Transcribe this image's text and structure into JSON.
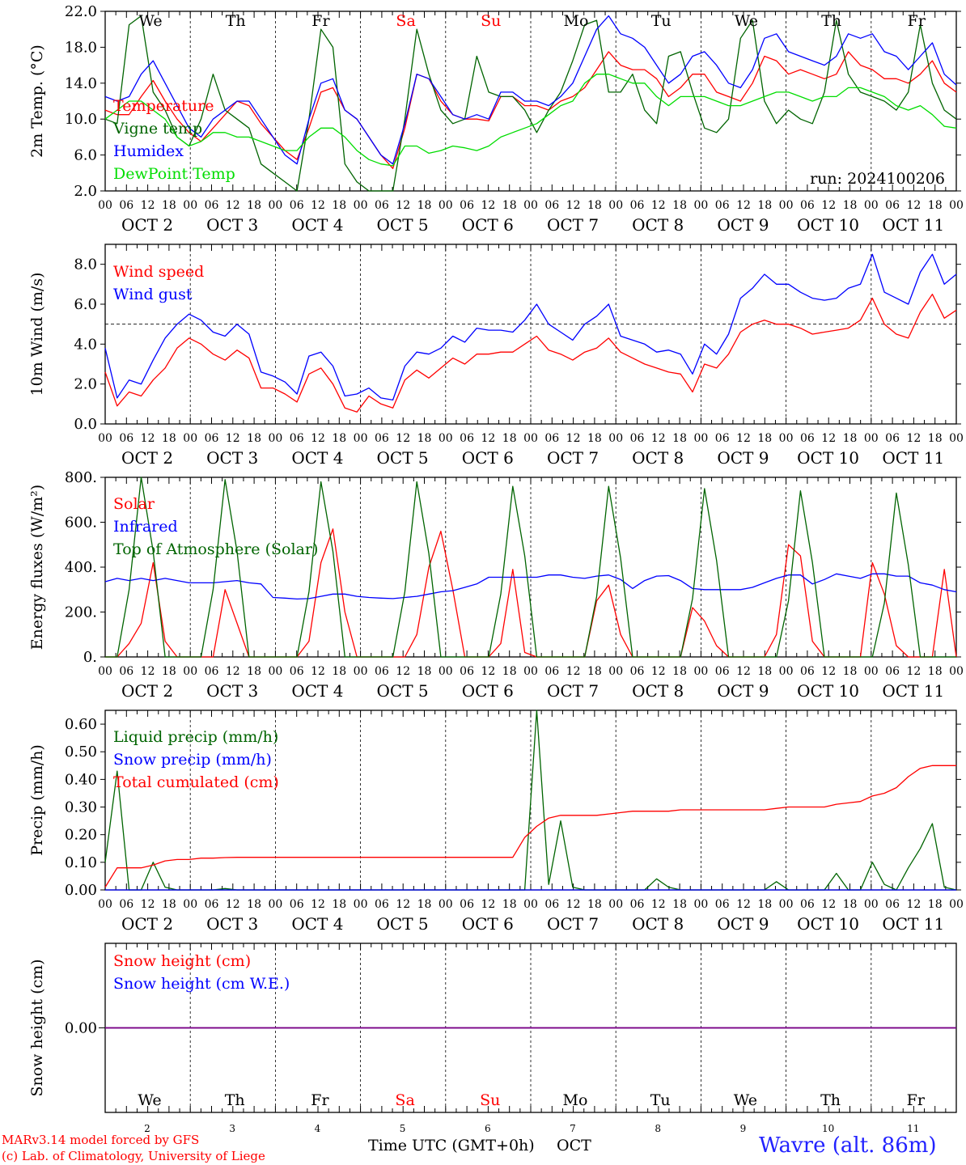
{
  "colors": {
    "red": "#ff0000",
    "green": "#006400",
    "blue": "#0000ff",
    "lightgreen": "#00dd00",
    "purple": "#800080",
    "weekday": "#000000",
    "weekend": "#ff0000"
  },
  "days": [
    {
      "dow": "We",
      "date": "OCT  2",
      "num": "2",
      "weekend": false
    },
    {
      "dow": "Th",
      "date": "OCT  3",
      "num": "3",
      "weekend": false
    },
    {
      "dow": "Fr",
      "date": "OCT  4",
      "num": "4",
      "weekend": false
    },
    {
      "dow": "Sa",
      "date": "OCT  5",
      "num": "5",
      "weekend": true
    },
    {
      "dow": "Su",
      "date": "OCT  6",
      "num": "6",
      "weekend": true
    },
    {
      "dow": "Mo",
      "date": "OCT  7",
      "num": "7",
      "weekend": false
    },
    {
      "dow": "Tu",
      "date": "OCT  8",
      "num": "8",
      "weekend": false
    },
    {
      "dow": "We",
      "date": "OCT  9",
      "num": "9",
      "weekend": false
    },
    {
      "dow": "Th",
      "date": "OCT 10",
      "num": "10",
      "weekend": false
    },
    {
      "dow": "Fr",
      "date": "OCT 11",
      "num": "11",
      "weekend": false
    }
  ],
  "hour_ticks": [
    "00",
    "06",
    "12",
    "18"
  ],
  "footer": {
    "model": "MARv3.14 model forced by GFS",
    "lab": "(c) Lab. of Climatology, University of Liege",
    "xlabel": "Time UTC (GMT+0h)",
    "month": "OCT",
    "station": "Wavre (alt. 86m)"
  },
  "chart_data": [
    {
      "type": "line",
      "id": "temp",
      "ylabel": "2m Temp. (°C)",
      "ylim": [
        2,
        22
      ],
      "yticks": [
        "2.0",
        "6.0",
        "10.0",
        "14.0",
        "18.0",
        "22.0"
      ],
      "annotation": "run: 2024100206",
      "x_hours_step": 6,
      "series": [
        {
          "name": "Temperature",
          "color": "red",
          "values": [
            11,
            10.5,
            10.5,
            12.5,
            14.3,
            12,
            10,
            8.5,
            7.5,
            9,
            10.5,
            12,
            11.5,
            9.5,
            8,
            6.5,
            5.5,
            9,
            13,
            13.5,
            11,
            10,
            8,
            6,
            4.5,
            9,
            15,
            14.5,
            12,
            10.5,
            10,
            10,
            9.8,
            12.5,
            12.5,
            11.5,
            11.5,
            11,
            12,
            12.5,
            13.5,
            15.5,
            17.5,
            16,
            15.5,
            15.5,
            14.5,
            12.5,
            13.5,
            15,
            15,
            13,
            12.5,
            12,
            14,
            17,
            16.5,
            15,
            15.5,
            15,
            14.5,
            15,
            17.5,
            16,
            15.5,
            14.5,
            14.5,
            14,
            15,
            16.5,
            14,
            13
          ]
        },
        {
          "name": "Vigne temp",
          "color": "green",
          "values": [
            10,
            9.5,
            20.5,
            21.5,
            13,
            11,
            8,
            7,
            10,
            15,
            11,
            10,
            9,
            5,
            4,
            3,
            2,
            10,
            20,
            18,
            5,
            3,
            2,
            1.8,
            1.5,
            10,
            20,
            15,
            11,
            9.5,
            10,
            17,
            13,
            12.5,
            12.5,
            11,
            8.5,
            11,
            13,
            16.5,
            20.5,
            21,
            13,
            13,
            15,
            11,
            9.5,
            17,
            17.5,
            13,
            9,
            8.5,
            10,
            19,
            21,
            12,
            9.5,
            11,
            10,
            9.5,
            13,
            21,
            15,
            13,
            12.5,
            12,
            11,
            13,
            20.5,
            14,
            11,
            10
          ]
        },
        {
          "name": "Humidex",
          "color": "blue",
          "values": [
            12.5,
            12,
            12.5,
            15,
            16.5,
            14,
            11.5,
            9,
            8,
            10,
            11,
            12,
            12,
            10,
            8,
            6,
            5,
            10,
            14,
            14.5,
            11,
            10,
            8,
            6,
            5,
            9.5,
            15,
            14.5,
            12.5,
            10.5,
            10,
            10.5,
            10,
            13,
            13,
            12,
            12,
            11.5,
            12.5,
            14,
            17,
            20,
            21.5,
            19.5,
            19,
            18,
            16,
            14,
            15,
            17,
            17.5,
            16,
            14,
            13.5,
            15.5,
            19,
            19.5,
            17.5,
            17,
            16.5,
            16,
            17,
            19.5,
            19,
            19.5,
            17.5,
            17,
            15.5,
            17,
            18.5,
            15,
            13.8
          ]
        },
        {
          "name": "DewPoint Temp",
          "color": "lightgreen",
          "values": [
            10,
            11,
            12,
            12,
            11,
            10,
            8,
            7,
            7.5,
            8.5,
            8.5,
            8,
            8,
            7.5,
            7,
            6.5,
            6.5,
            8,
            9,
            9,
            8,
            6.5,
            5.5,
            5,
            4.8,
            7,
            7,
            6.2,
            6.5,
            7,
            6.8,
            6.5,
            7,
            8,
            8.5,
            9,
            9.5,
            10.5,
            11.5,
            12,
            14,
            15,
            15,
            14.5,
            14,
            14,
            12.5,
            11.5,
            12.5,
            12.5,
            12.5,
            12,
            11.5,
            11.5,
            12,
            12.5,
            13,
            13,
            12.5,
            12,
            12.5,
            12.5,
            13.5,
            13.5,
            13,
            12.5,
            11.5,
            11,
            11.5,
            10.5,
            9.2,
            9
          ]
        }
      ]
    },
    {
      "type": "line",
      "id": "wind",
      "ylabel": "10m Wind (m/s)",
      "ylim": [
        0,
        9
      ],
      "yticks": [
        "0.0",
        "2.0",
        "4.0",
        "6.0",
        "8.0"
      ],
      "reference_line": 5,
      "x_hours_step": 6,
      "series": [
        {
          "name": "Wind speed",
          "color": "red",
          "values": [
            2.6,
            0.9,
            1.6,
            1.4,
            2.2,
            2.8,
            3.8,
            4.3,
            4.0,
            3.5,
            3.2,
            3.7,
            3.3,
            1.8,
            1.8,
            1.5,
            1.1,
            2.5,
            2.8,
            2.0,
            0.8,
            0.6,
            1.4,
            1.0,
            0.8,
            2.2,
            2.7,
            2.3,
            2.8,
            3.3,
            3.0,
            3.5,
            3.5,
            3.6,
            3.6,
            4.0,
            4.4,
            3.7,
            3.5,
            3.2,
            3.6,
            3.8,
            4.3,
            3.6,
            3.3,
            3.0,
            2.8,
            2.6,
            2.5,
            1.6,
            3.0,
            2.8,
            3.5,
            4.6,
            5.0,
            5.2,
            5.0,
            5.0,
            4.8,
            4.5,
            4.6,
            4.7,
            4.8,
            5.2,
            6.3,
            5.0,
            4.5,
            4.3,
            5.6,
            6.5,
            5.3,
            5.7
          ]
        },
        {
          "name": "Wind gust",
          "color": "blue",
          "values": [
            3.8,
            1.3,
            2.2,
            2.0,
            3.2,
            4.3,
            5.0,
            5.5,
            5.2,
            4.6,
            4.4,
            5.0,
            4.5,
            2.6,
            2.4,
            2.1,
            1.5,
            3.4,
            3.6,
            2.9,
            1.4,
            1.5,
            1.8,
            1.3,
            1.2,
            2.9,
            3.6,
            3.5,
            3.8,
            4.4,
            4.1,
            4.8,
            4.7,
            4.7,
            4.6,
            5.2,
            6.0,
            5.0,
            4.6,
            4.2,
            5.0,
            5.4,
            6.0,
            4.4,
            4.2,
            4.0,
            3.6,
            3.7,
            3.5,
            2.5,
            4.0,
            3.5,
            4.5,
            6.3,
            6.8,
            7.5,
            7.0,
            7.0,
            6.6,
            6.3,
            6.2,
            6.3,
            6.8,
            7.0,
            8.5,
            6.6,
            6.3,
            6.0,
            7.6,
            8.5,
            7.0,
            7.5
          ]
        }
      ]
    },
    {
      "type": "line",
      "id": "flux",
      "ylabel": "Energy fluxes (W/m²)",
      "ylim": [
        0,
        800
      ],
      "yticks": [
        "0.",
        "200.",
        "400.",
        "600.",
        "800."
      ],
      "x_hours_step": 6,
      "series": [
        {
          "name": "Solar",
          "color": "red",
          "values": [
            0,
            0,
            60,
            150,
            420,
            70,
            0,
            0,
            0,
            0,
            300,
            150,
            0,
            0,
            0,
            0,
            0,
            70,
            420,
            570,
            200,
            0,
            0,
            0,
            0,
            0,
            100,
            400,
            560,
            300,
            0,
            0,
            0,
            60,
            390,
            20,
            0,
            0,
            0,
            0,
            0,
            250,
            320,
            100,
            0,
            0,
            0,
            0,
            0,
            220,
            160,
            50,
            0,
            0,
            0,
            0,
            100,
            500,
            450,
            70,
            0,
            0,
            0,
            0,
            420,
            280,
            50,
            0,
            0,
            0,
            390,
            0
          ]
        },
        {
          "name": "Infrared",
          "color": "blue",
          "values": [
            335,
            350,
            340,
            350,
            340,
            350,
            340,
            330,
            330,
            330,
            335,
            340,
            330,
            325,
            265,
            262,
            258,
            260,
            270,
            280,
            280,
            270,
            265,
            262,
            260,
            265,
            270,
            280,
            290,
            295,
            310,
            325,
            355,
            355,
            355,
            355,
            355,
            365,
            365,
            355,
            350,
            360,
            365,
            345,
            305,
            340,
            360,
            362,
            340,
            305,
            300,
            300,
            300,
            300,
            310,
            330,
            350,
            365,
            365,
            325,
            345,
            370,
            360,
            350,
            370,
            370,
            360,
            360,
            330,
            320,
            300,
            290
          ]
        },
        {
          "name": "Top of Atmosphere (Solar)",
          "color": "green",
          "values": [
            0,
            0,
            300,
            800,
            470,
            0,
            0,
            0,
            0,
            300,
            790,
            470,
            0,
            0,
            0,
            0,
            0,
            290,
            780,
            470,
            0,
            0,
            0,
            0,
            0,
            290,
            780,
            460,
            0,
            0,
            0,
            0,
            0,
            280,
            760,
            450,
            0,
            0,
            0,
            0,
            0,
            270,
            760,
            440,
            0,
            0,
            0,
            0,
            0,
            260,
            750,
            430,
            0,
            0,
            0,
            0,
            0,
            250,
            740,
            420,
            0,
            0,
            0,
            0,
            0,
            240,
            730,
            410,
            0,
            0,
            0,
            0
          ]
        }
      ]
    },
    {
      "type": "line",
      "id": "precip",
      "ylabel": "Precip (mm/h)",
      "ylim": [
        0,
        0.65
      ],
      "yticks": [
        "0.00",
        "0.10",
        "0.20",
        "0.30",
        "0.40",
        "0.50",
        "0.60"
      ],
      "x_hours_step": 6,
      "series": [
        {
          "name": "Liquid precip (mm/h)",
          "color": "green",
          "values": [
            0.1,
            0.43,
            0,
            0,
            0.1,
            0.01,
            0,
            0,
            0,
            0,
            0.005,
            0,
            0,
            0,
            0,
            0,
            0,
            0,
            0,
            0,
            0,
            0,
            0,
            0,
            0,
            0,
            0,
            0,
            0,
            0,
            0,
            0,
            0,
            0,
            0,
            0,
            0.65,
            0.02,
            0.25,
            0.01,
            0,
            0,
            0,
            0,
            0,
            0,
            0.04,
            0.01,
            0,
            0,
            0,
            0,
            0,
            0,
            0,
            0,
            0.03,
            0,
            0,
            0,
            0,
            0.06,
            0,
            0,
            0.1,
            0.02,
            0,
            0.08,
            0.15,
            0.24,
            0.01,
            0
          ]
        },
        {
          "name": "Snow precip (mm/h)",
          "color": "blue",
          "values": [
            0,
            0,
            0,
            0,
            0,
            0,
            0,
            0,
            0,
            0,
            0,
            0,
            0,
            0,
            0,
            0,
            0,
            0,
            0,
            0,
            0,
            0,
            0,
            0,
            0,
            0,
            0,
            0,
            0,
            0,
            0,
            0,
            0,
            0,
            0,
            0,
            0,
            0,
            0,
            0,
            0,
            0,
            0,
            0,
            0,
            0,
            0,
            0,
            0,
            0,
            0,
            0,
            0,
            0,
            0,
            0,
            0,
            0,
            0,
            0,
            0,
            0,
            0,
            0,
            0,
            0,
            0,
            0,
            0,
            0,
            0,
            0
          ]
        },
        {
          "name": "Total cumulated (cm)",
          "color": "red",
          "values": [
            0.01,
            0.08,
            0.08,
            0.08,
            0.09,
            0.105,
            0.11,
            0.11,
            0.115,
            0.115,
            0.117,
            0.118,
            0.118,
            0.118,
            0.118,
            0.118,
            0.118,
            0.118,
            0.118,
            0.118,
            0.118,
            0.118,
            0.118,
            0.118,
            0.118,
            0.118,
            0.118,
            0.118,
            0.118,
            0.118,
            0.118,
            0.118,
            0.118,
            0.118,
            0.118,
            0.19,
            0.23,
            0.26,
            0.27,
            0.27,
            0.27,
            0.27,
            0.275,
            0.28,
            0.285,
            0.285,
            0.285,
            0.285,
            0.29,
            0.29,
            0.29,
            0.29,
            0.29,
            0.29,
            0.29,
            0.29,
            0.295,
            0.3,
            0.3,
            0.3,
            0.3,
            0.31,
            0.315,
            0.32,
            0.34,
            0.35,
            0.37,
            0.41,
            0.44,
            0.45,
            0.45,
            0.45
          ]
        }
      ]
    },
    {
      "type": "line",
      "id": "snow",
      "ylabel": "Snow height (cm)",
      "ylim": [
        -1,
        1
      ],
      "yticks": [
        "0.00"
      ],
      "x_hours_step": 6,
      "series": [
        {
          "name": "Snow height (cm)",
          "color": "red",
          "values": [
            0,
            0
          ]
        },
        {
          "name": "Snow height (cm W.E.)",
          "color": "blue",
          "values": [
            0,
            0
          ]
        }
      ]
    }
  ]
}
